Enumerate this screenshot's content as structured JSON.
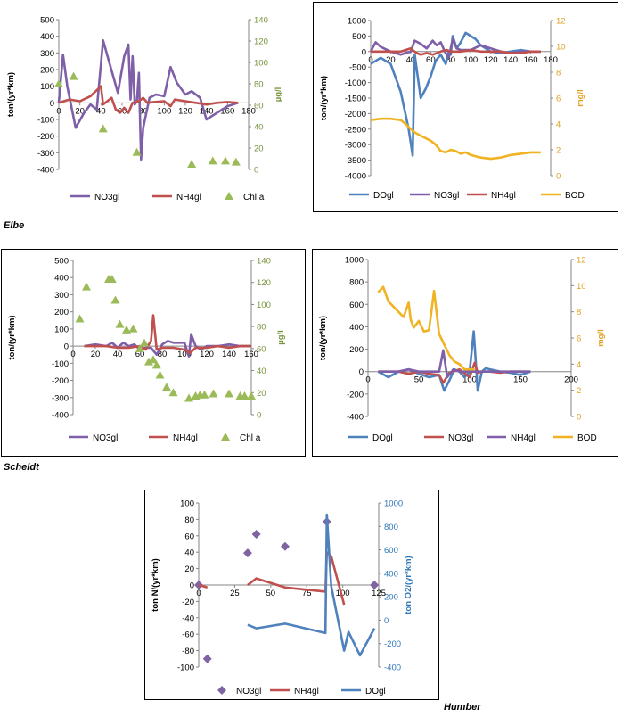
{
  "captions": {
    "elbe": "Elbe",
    "scheldt": "Scheldt",
    "humber": "Humber"
  },
  "chart_data": [
    {
      "id": "elbe_left",
      "type": "line",
      "title": "",
      "ylabel": "ton/(yr*km)",
      "y2label": "µg/l",
      "xlim": [
        0,
        180
      ],
      "ylim": [
        -400,
        500
      ],
      "y2lim": [
        0,
        140
      ],
      "xticks": [
        "0",
        "20",
        "40",
        "60",
        "80",
        "100",
        "120",
        "140",
        "160",
        "180"
      ],
      "yticks": [
        "500",
        "400",
        "300",
        "200",
        "100",
        "0",
        "-100",
        "-200",
        "-300",
        "-400"
      ],
      "y2ticks": [
        "140",
        "120",
        "100",
        "80",
        "60",
        "40",
        "20",
        "0"
      ],
      "series": [
        {
          "name": "NO3gl",
          "color": "#7f5fa8",
          "kind": "line",
          "axis": "y",
          "x": [
            0,
            4,
            8,
            16,
            24,
            30,
            36,
            42,
            48,
            56,
            62,
            66,
            68,
            70,
            72,
            74,
            76,
            78,
            80,
            86,
            92,
            100,
            106,
            112,
            120,
            126,
            134,
            140,
            150,
            160,
            170
          ],
          "y": [
            0,
            290,
            100,
            -150,
            -60,
            -10,
            -40,
            375,
            240,
            60,
            280,
            350,
            20,
            280,
            -10,
            10,
            180,
            -340,
            -150,
            30,
            50,
            40,
            215,
            120,
            50,
            70,
            30,
            -100,
            -60,
            -20,
            0
          ]
        },
        {
          "name": "NH4gl",
          "color": "#c0504d",
          "kind": "line",
          "axis": "y",
          "x": [
            0,
            10,
            20,
            30,
            40,
            42,
            46,
            50,
            54,
            58,
            62,
            66,
            70,
            76,
            80,
            84,
            90,
            100,
            106,
            110,
            120,
            130,
            140,
            150,
            160,
            170
          ],
          "y": [
            0,
            20,
            10,
            40,
            100,
            -10,
            10,
            30,
            -40,
            -60,
            -30,
            -60,
            0,
            10,
            30,
            0,
            5,
            10,
            -20,
            20,
            10,
            0,
            -10,
            0,
            5,
            0
          ]
        },
        {
          "name": "Chl a",
          "color": "#9bbb59",
          "kind": "marker",
          "axis": "y2",
          "x": [
            0,
            14,
            42,
            74,
            126,
            146,
            158,
            168
          ],
          "y": [
            80,
            87,
            38,
            16,
            5,
            8,
            8,
            7
          ]
        }
      ]
    },
    {
      "id": "elbe_right",
      "type": "line",
      "title": "",
      "ylabel": "ton/(yr*km)",
      "y2label": "mg/l",
      "xlim": [
        0,
        180
      ],
      "ylim": [
        -4000,
        1000
      ],
      "y2lim": [
        0,
        12
      ],
      "xticks": [
        "0",
        "20",
        "40",
        "60",
        "80",
        "100",
        "120",
        "140",
        "160",
        "180"
      ],
      "yticks": [
        "1000",
        "500",
        "0",
        "-500",
        "-1000",
        "-1500",
        "-2000",
        "-2500",
        "-3000",
        "-3500",
        "-4000"
      ],
      "y2ticks": [
        "12",
        "10",
        "8",
        "6",
        "4",
        "2",
        "0"
      ],
      "series": [
        {
          "name": "DOgl",
          "color": "#4f81bd",
          "kind": "line",
          "axis": "y",
          "x": [
            0,
            10,
            20,
            30,
            38,
            42,
            44,
            50,
            55,
            60,
            65,
            70,
            75,
            78,
            80,
            82,
            86,
            90,
            95,
            100,
            105,
            110,
            120,
            130,
            140,
            150,
            160,
            170
          ],
          "y": [
            -400,
            -200,
            -400,
            -1300,
            -2500,
            -3350,
            -100,
            -1500,
            -1200,
            -800,
            -300,
            -100,
            -400,
            0,
            -100,
            500,
            100,
            300,
            600,
            500,
            400,
            200,
            0,
            -50,
            0,
            50,
            0,
            0
          ]
        },
        {
          "name": "NO3gl",
          "color": "#7f5fa8",
          "kind": "line",
          "axis": "y",
          "x": [
            0,
            5,
            10,
            20,
            30,
            40,
            44,
            50,
            56,
            62,
            66,
            70,
            74,
            78,
            82,
            86,
            90,
            100,
            110,
            120,
            130,
            140,
            150,
            160,
            170
          ],
          "y": [
            0,
            300,
            150,
            0,
            -100,
            0,
            350,
            250,
            100,
            350,
            200,
            300,
            0,
            -200,
            400,
            100,
            50,
            50,
            200,
            100,
            0,
            -50,
            0,
            0,
            0
          ]
        },
        {
          "name": "NH4gl",
          "color": "#c0504d",
          "kind": "line",
          "axis": "y",
          "x": [
            0,
            10,
            20,
            30,
            40,
            42,
            46,
            50,
            56,
            62,
            70,
            76,
            80,
            90,
            100,
            110,
            120,
            130,
            140,
            150,
            160,
            170
          ],
          "y": [
            0,
            0,
            0,
            0,
            100,
            50,
            -50,
            -100,
            -50,
            -100,
            0,
            50,
            0,
            0,
            50,
            0,
            0,
            0,
            -50,
            -50,
            0,
            0
          ]
        },
        {
          "name": "BOD",
          "color": "#f0b323",
          "kind": "line",
          "axis": "y2",
          "x": [
            0,
            10,
            20,
            30,
            35,
            40,
            45,
            50,
            60,
            65,
            70,
            75,
            80,
            85,
            90,
            95,
            100,
            110,
            120,
            130,
            140,
            150,
            160,
            170
          ],
          "y": [
            4.3,
            4.4,
            4.4,
            4.3,
            4.0,
            3.6,
            3.3,
            3.1,
            2.7,
            2.4,
            1.9,
            1.8,
            2.0,
            1.9,
            1.7,
            1.8,
            1.6,
            1.4,
            1.3,
            1.4,
            1.6,
            1.7,
            1.8,
            1.8
          ]
        }
      ]
    },
    {
      "id": "scheldt_left",
      "type": "line",
      "title": "",
      "ylabel": "ton/(yr*km)",
      "y2label": "µg/l",
      "xlim": [
        0,
        160
      ],
      "ylim": [
        -400,
        500
      ],
      "y2lim": [
        0,
        140
      ],
      "xticks": [
        "0",
        "20",
        "40",
        "60",
        "80",
        "100",
        "120",
        "140",
        "160"
      ],
      "yticks": [
        "500",
        "400",
        "300",
        "200",
        "100",
        "0",
        "-100",
        "-200",
        "-300",
        "-400"
      ],
      "y2ticks": [
        "140",
        "120",
        "100",
        "80",
        "60",
        "40",
        "20",
        "0"
      ],
      "series": [
        {
          "name": "NO3gl",
          "color": "#7f5fa8",
          "kind": "line",
          "axis": "y",
          "x": [
            10,
            20,
            30,
            35,
            40,
            45,
            50,
            55,
            60,
            65,
            70,
            75,
            80,
            85,
            90,
            95,
            100,
            104,
            106,
            110,
            115,
            120,
            130,
            140,
            150,
            160
          ],
          "y": [
            0,
            10,
            0,
            20,
            -10,
            20,
            0,
            10,
            -20,
            -10,
            -10,
            -50,
            10,
            30,
            20,
            20,
            20,
            -60,
            70,
            0,
            -20,
            0,
            0,
            10,
            0,
            0
          ]
        },
        {
          "name": "NH4gl",
          "color": "#c0504d",
          "kind": "line",
          "axis": "y",
          "x": [
            10,
            20,
            30,
            40,
            50,
            60,
            65,
            70,
            72,
            75,
            80,
            90,
            100,
            105,
            110,
            120,
            130,
            140,
            150,
            160
          ],
          "y": [
            0,
            0,
            0,
            -10,
            -10,
            0,
            -20,
            30,
            180,
            -20,
            -10,
            -10,
            -20,
            -40,
            -10,
            -10,
            0,
            -10,
            0,
            0
          ]
        },
        {
          "name": "Chl a",
          "color": "#9bbb59",
          "kind": "marker",
          "axis": "y2",
          "x": [
            6,
            12,
            32,
            35,
            38,
            42,
            48,
            54,
            60,
            64,
            68,
            72,
            75,
            78,
            84,
            90,
            104,
            110,
            114,
            118,
            126,
            140,
            150,
            154,
            160
          ],
          "y": [
            87,
            116,
            123,
            123,
            104,
            82,
            77,
            78,
            60,
            65,
            48,
            50,
            45,
            36,
            25,
            20,
            15,
            17,
            18,
            18,
            19,
            19,
            17,
            17,
            17
          ]
        }
      ]
    },
    {
      "id": "scheldt_right",
      "type": "line",
      "title": "",
      "ylabel": "ton/(yr*km)",
      "y2label": "mg/l",
      "xlim": [
        0,
        200
      ],
      "ylim": [
        -400,
        1000
      ],
      "y2lim": [
        0,
        12
      ],
      "xticks": [
        "0",
        "50",
        "100",
        "150",
        "200"
      ],
      "yticks": [
        "1000",
        "800",
        "600",
        "400",
        "200",
        "0",
        "-200",
        "-400"
      ],
      "y2ticks": [
        "12",
        "10",
        "8",
        "6",
        "4",
        "2",
        "0"
      ],
      "series": [
        {
          "name": "DOgl",
          "color": "#4f81bd",
          "kind": "line",
          "axis": "y",
          "x": [
            10,
            20,
            30,
            40,
            50,
            60,
            70,
            75,
            80,
            85,
            90,
            95,
            100,
            104,
            108,
            112,
            116,
            120,
            130,
            140,
            150,
            160
          ],
          "y": [
            0,
            -50,
            0,
            20,
            -20,
            -50,
            -30,
            -170,
            -80,
            20,
            0,
            -50,
            0,
            360,
            -170,
            0,
            30,
            20,
            0,
            -10,
            -30,
            0
          ]
        },
        {
          "name": "NO3gl",
          "color": "#c0504d",
          "kind": "line",
          "axis": "y",
          "x": [
            10,
            20,
            30,
            40,
            50,
            60,
            70,
            74,
            80,
            90,
            100,
            105,
            108,
            112,
            120,
            130,
            140,
            150,
            160
          ],
          "y": [
            0,
            0,
            0,
            -20,
            0,
            -20,
            -30,
            -100,
            -10,
            20,
            -50,
            80,
            -10,
            0,
            0,
            -10,
            0,
            0,
            0
          ]
        },
        {
          "name": "NH4gl",
          "color": "#7f5fa8",
          "kind": "line",
          "axis": "y",
          "x": [
            10,
            20,
            30,
            40,
            50,
            60,
            70,
            74,
            78,
            84,
            90,
            100,
            110,
            120,
            130,
            140,
            150,
            160
          ],
          "y": [
            0,
            0,
            0,
            20,
            0,
            0,
            0,
            190,
            -50,
            20,
            0,
            0,
            0,
            0,
            0,
            0,
            0,
            0
          ]
        },
        {
          "name": "BOD",
          "color": "#f0b323",
          "kind": "line",
          "axis": "y2",
          "x": [
            10,
            15,
            20,
            25,
            30,
            35,
            40,
            42,
            45,
            50,
            55,
            60,
            65,
            70,
            75,
            80,
            85,
            90,
            95,
            100,
            105
          ],
          "y": [
            9.5,
            9.9,
            8.8,
            8.4,
            8.0,
            7.6,
            8.7,
            7.4,
            6.8,
            7.3,
            6.5,
            6.6,
            9.6,
            6.3,
            5.5,
            4.7,
            4.2,
            4.0,
            3.6,
            3.6,
            3.6
          ]
        }
      ]
    },
    {
      "id": "humber",
      "type": "line",
      "title": "",
      "ylabel": "ton N/(yr*km)",
      "y2label": "ton O2/(yr*km)",
      "xlim": [
        0,
        125
      ],
      "ylim": [
        -100,
        100
      ],
      "y2lim": [
        -400,
        1000
      ],
      "xticks": [
        "0",
        "25",
        "50",
        "75",
        "100",
        "125"
      ],
      "yticks": [
        "100",
        "80",
        "60",
        "40",
        "20",
        "0",
        "-20",
        "-40",
        "-60",
        "-80",
        "-100"
      ],
      "y2ticks": [
        "1000",
        "800",
        "600",
        "400",
        "200",
        "0",
        "-200",
        "-400"
      ],
      "series": [
        {
          "name": "NO3gl",
          "color": "#8064a2",
          "kind": "diamond",
          "axis": "y",
          "x": [
            0,
            6,
            34,
            40,
            60,
            89,
            122
          ],
          "y": [
            0,
            -90,
            39,
            62,
            47,
            77,
            0
          ]
        },
        {
          "name": "NH4gl",
          "color": "#c0504d",
          "kind": "line",
          "axis": "y",
          "x": [
            0,
            6,
            null,
            34,
            40,
            60,
            88,
            89,
            92,
            101
          ],
          "y": [
            0,
            -3,
            null,
            0,
            8,
            -3,
            -8,
            40,
            35,
            -24
          ]
        },
        {
          "name": "DOgl",
          "color": "#4f81bd",
          "kind": "line",
          "axis": "y2",
          "x": [
            34,
            40,
            60,
            88,
            89,
            92,
            101,
            104,
            112,
            122
          ],
          "y": [
            -40,
            -70,
            -30,
            -110,
            900,
            290,
            -260,
            -100,
            -300,
            -70
          ]
        }
      ]
    }
  ]
}
